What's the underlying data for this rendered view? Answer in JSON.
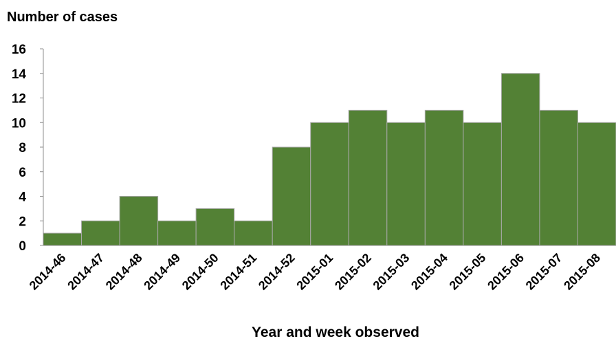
{
  "chart_data": {
    "type": "bar",
    "title": "",
    "ylabel": "Number of cases",
    "xlabel": "Year and week observed",
    "categories": [
      "2014-46",
      "2014-47",
      "2014-48",
      "2014-49",
      "2014-50",
      "2014-51",
      "2014-52",
      "2015-01",
      "2015-02",
      "2015-03",
      "2015-04",
      "2015-05",
      "2015-06",
      "2015-07",
      "2015-08"
    ],
    "values": [
      1,
      2,
      4,
      2,
      3,
      2,
      8,
      10,
      11,
      10,
      11,
      10,
      14,
      11,
      10
    ],
    "ylim": [
      0,
      16
    ],
    "yticks": [
      0,
      2,
      4,
      6,
      8,
      10,
      12,
      14,
      16
    ],
    "grid": false,
    "legend": "none",
    "bar_color": "#538135",
    "bar_edge_color": "#a9a9a9"
  }
}
